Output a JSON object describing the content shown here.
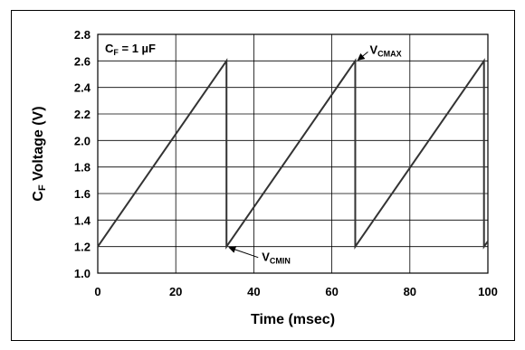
{
  "chart_data": {
    "type": "line",
    "xlabel": "Time (msec)",
    "ylabel": {
      "main": "C",
      "sub": "F",
      "rest": " Voltage (V)"
    },
    "xlim": [
      0,
      100
    ],
    "ylim": [
      1.0,
      2.8
    ],
    "xticks": [
      "0",
      "20",
      "40",
      "60",
      "80",
      "100"
    ],
    "xtick_values": [
      0,
      20,
      40,
      60,
      80,
      100
    ],
    "yticks": [
      "1.0",
      "1.2",
      "1.4",
      "1.6",
      "1.8",
      "2.0",
      "2.2",
      "2.4",
      "2.6",
      "2.8"
    ],
    "ytick_values": [
      1.0,
      1.2,
      1.4,
      1.6,
      1.8,
      2.0,
      2.2,
      2.4,
      2.6,
      2.8
    ],
    "grid": true,
    "series": [
      {
        "x": [
          0,
          33,
          33,
          66,
          66,
          99,
          99,
          100
        ],
        "y": [
          1.2,
          2.6,
          1.2,
          2.6,
          1.2,
          2.6,
          1.2,
          1.24
        ]
      }
    ],
    "line_color": "#333333",
    "annotations": {
      "cf_label": {
        "main": "C",
        "sub": "F",
        "rest": " = 1 µF"
      },
      "vcmax": {
        "main": "V",
        "sub": "CMAX",
        "x": 66,
        "y": 2.6
      },
      "vcmin": {
        "main": "V",
        "sub": "CMIN",
        "x": 33,
        "y": 1.2
      }
    }
  }
}
